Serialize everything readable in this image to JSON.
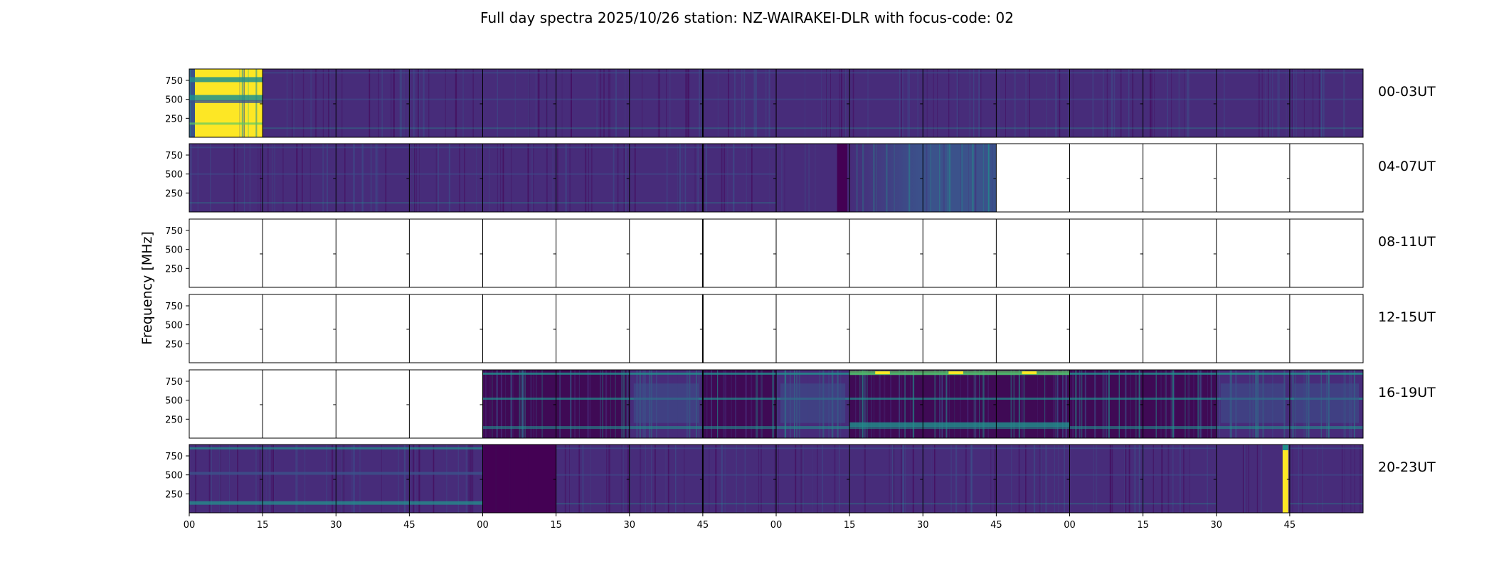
{
  "chart_data": {
    "type": "heatmap",
    "title": "Full day spectra 2025/10/26 station: NZ-WAIRAKEI-DLR with focus-code: 02",
    "ylabel": "Frequency [MHz]",
    "xlabel": "",
    "ylim": [
      0,
      900
    ],
    "y_ticks": [
      "750",
      "500",
      "250"
    ],
    "x_tick_labels": [
      "00",
      "15",
      "30",
      "45",
      "00",
      "15",
      "30",
      "45",
      "00",
      "15",
      "30",
      "45",
      "00",
      "15",
      "30",
      "45"
    ],
    "colormap": "viridis",
    "colors": {
      "empty": "#ffffff",
      "low": "#440154",
      "dark_purple": "#3f0a55",
      "base_purple": "#472c7a",
      "mid_blue": "#3b528b",
      "teal": "#21918c",
      "green": "#5ec962",
      "yellow": "#fde725"
    },
    "rows": [
      {
        "label": "00-03UT",
        "panels": [
          "saturated",
          "low",
          "low",
          "low",
          "low",
          "low",
          "low",
          "low",
          "low",
          "low",
          "low",
          "low",
          "low",
          "low",
          "low",
          "low"
        ]
      },
      {
        "label": "04-07UT",
        "panels": [
          "low",
          "low",
          "low",
          "low",
          "low",
          "low",
          "low",
          "low",
          "dark-band",
          "gradient",
          "bluish",
          "empty",
          "empty",
          "empty",
          "empty",
          "empty"
        ]
      },
      {
        "label": "08-11UT",
        "panels": [
          "empty",
          "empty",
          "empty",
          "empty",
          "empty",
          "empty",
          "empty",
          "empty",
          "empty",
          "empty",
          "empty",
          "empty",
          "empty",
          "empty",
          "empty",
          "empty"
        ]
      },
      {
        "label": "12-15UT",
        "panels": [
          "empty",
          "empty",
          "empty",
          "empty",
          "empty",
          "empty",
          "empty",
          "empty",
          "empty",
          "empty",
          "empty",
          "empty",
          "empty",
          "empty",
          "empty",
          "empty"
        ]
      },
      {
        "label": "16-19UT",
        "panels": [
          "empty",
          "empty",
          "empty",
          "empty",
          "active",
          "active",
          "active-blue",
          "active",
          "active-blue",
          "active-strong",
          "active-strong",
          "active-strong",
          "active",
          "active",
          "active-blue",
          "active-blue"
        ]
      },
      {
        "label": "20-23UT",
        "panels": [
          "striped",
          "striped",
          "striped",
          "striped",
          "dark",
          "low",
          "low",
          "low",
          "low",
          "low",
          "low",
          "low",
          "low",
          "low",
          "yellow-line",
          "low"
        ]
      }
    ]
  }
}
